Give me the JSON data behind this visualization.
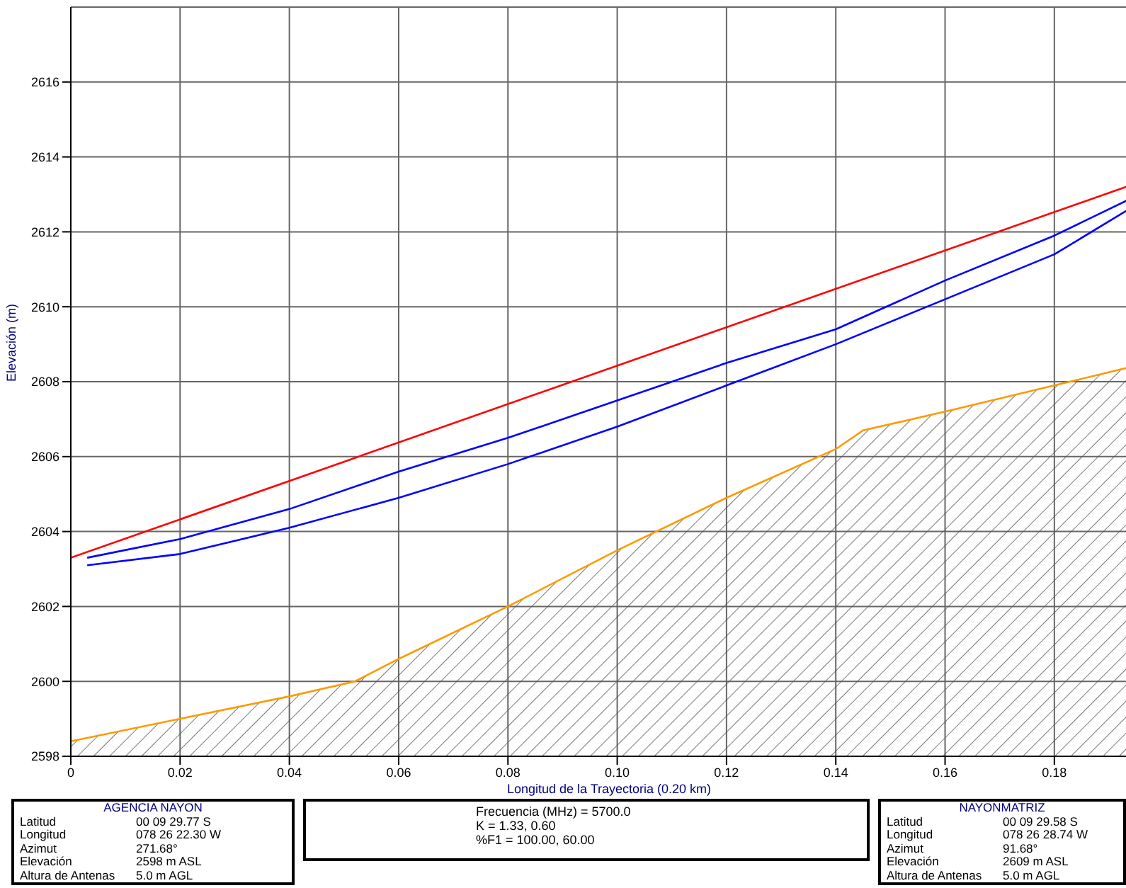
{
  "chart_data": {
    "type": "line",
    "xlabel": "Longitud de la Trayectoria (0.20 km)",
    "ylabel": "Elevación (m)",
    "xlim": [
      0,
      0.197
    ],
    "ylim": [
      2598,
      2618
    ],
    "xticks": [
      0,
      0.02,
      0.04,
      0.06,
      0.08,
      {
        "value": 0.1,
        "label": "0.10"
      },
      0.12,
      0.14,
      0.16,
      0.18
    ],
    "yticks": [
      2598,
      2600,
      2602,
      2604,
      2606,
      2608,
      2610,
      2612,
      2614,
      2616
    ],
    "grid": true,
    "legend": false,
    "marker": "none",
    "line_style": "solid",
    "series": [
      {
        "type": "area",
        "color": "#ff9900",
        "x": [
          0,
          0.02,
          0.04,
          0.052,
          0.06,
          0.08,
          0.1,
          0.12,
          0.14,
          0.145,
          0.16,
          0.18,
          0.197
        ],
        "values": [
          2598.4,
          2599.0,
          2599.6,
          2600.0,
          2600.6,
          2602.0,
          2603.5,
          2604.9,
          2606.2,
          2606.7,
          2607.2,
          2607.9,
          2608.5
        ]
      },
      {
        "color": "#ff0000",
        "x": [
          0,
          0.197
        ],
        "values": [
          2603.3,
          2613.4
        ]
      },
      {
        "color": "#0000ff",
        "x": [
          0.003,
          0.02,
          0.04,
          0.06,
          0.08,
          0.1,
          0.12,
          0.14,
          0.16,
          0.18,
          0.197
        ],
        "values": [
          2603.3,
          2603.8,
          2604.6,
          2605.6,
          2606.5,
          2607.5,
          2608.5,
          2609.4,
          2610.7,
          2611.9,
          2613.1
        ]
      },
      {
        "color": "#0000ff",
        "x": [
          0.003,
          0.02,
          0.04,
          0.06,
          0.08,
          0.1,
          0.12,
          0.14,
          0.16,
          0.18,
          0.197
        ],
        "values": [
          2603.1,
          2603.4,
          2604.1,
          2604.9,
          2605.8,
          2606.8,
          2607.9,
          2609.0,
          2610.2,
          2611.4,
          2612.9
        ]
      }
    ],
    "annotations": [
      "AGENCIA NAYON",
      "Latitud",
      "00 09 29.77 S",
      "Longitud",
      "078 26 22.30 W",
      "Azimut",
      "271.68°",
      "Elevación",
      "2598 m ASL",
      "Altura de Antenas",
      "5.0 m AGL",
      "Frecuencia (MHz) = 5700.0",
      "K = 1.33, 0.60",
      "%F1 = 100.00, 60.00",
      "NAYONMATRIZ",
      "Latitud",
      "00 09 29.58 S",
      "Longitud",
      "078 26 28.74 W",
      "Azimut",
      "91.68°",
      "Elevación",
      "2609 m ASL",
      "Altura de Antenas",
      "5.0 m AGL"
    ]
  }
}
